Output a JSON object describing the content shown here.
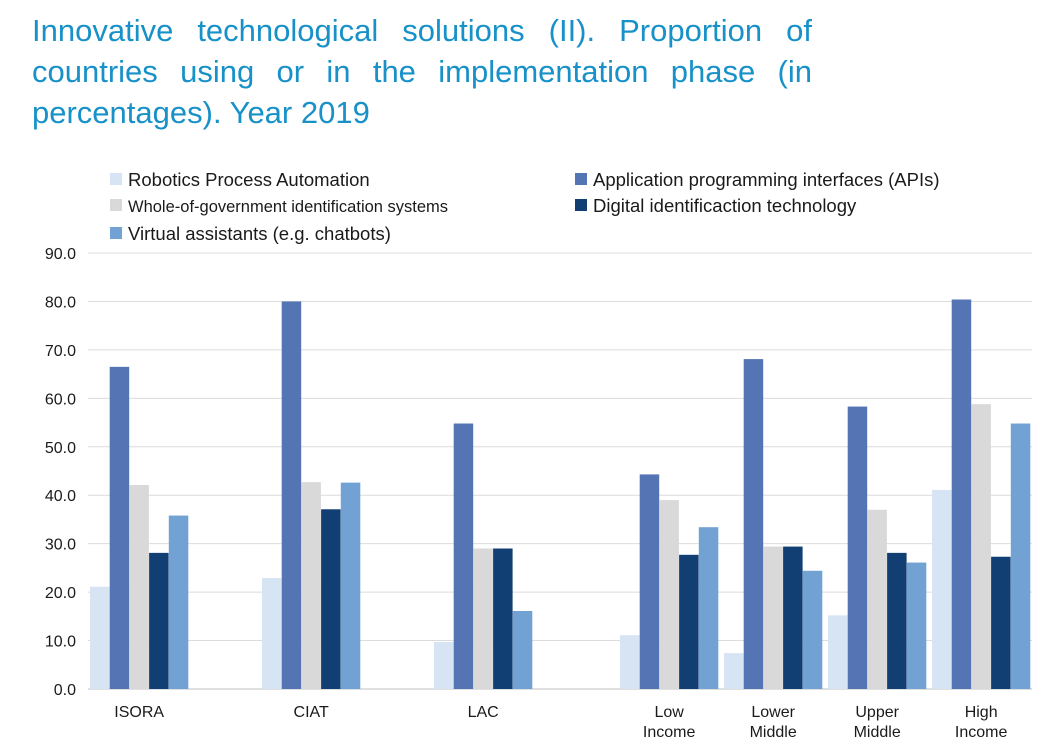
{
  "chart_data": {
    "type": "bar",
    "title": "Innovative technological solutions (II). Proportion of countries using or in the implementation phase (in percentages). Year 2019",
    "xlabel": "",
    "ylabel": "",
    "ylim": [
      0,
      90
    ],
    "yticks": [
      "0.0",
      "10.0",
      "20.0",
      "30.0",
      "40.0",
      "50.0",
      "60.0",
      "70.0",
      "80.0",
      "90.0"
    ],
    "grid": true,
    "legend_position": "top",
    "categories": [
      [
        "ISORA"
      ],
      [
        "CIAT"
      ],
      [
        "LAC"
      ],
      [
        "Low",
        "Income"
      ],
      [
        "Lower",
        "Middle"
      ],
      [
        "Upper",
        "Middle"
      ],
      [
        "High",
        "Income"
      ]
    ],
    "series": [
      {
        "name": "Robotics Process Automation",
        "color": "#d6e4f4",
        "values": [
          21.1,
          22.9,
          9.7,
          11.1,
          7.4,
          15.2,
          41.1
        ]
      },
      {
        "name": "Application programming interfaces (APIs)",
        "color": "#5474b4",
        "values": [
          66.5,
          80.0,
          54.8,
          44.3,
          68.1,
          58.3,
          80.4
        ]
      },
      {
        "name": "Whole-of-government identification systems",
        "color": "#d9d9d9",
        "values": [
          42.1,
          42.7,
          29.0,
          39.0,
          29.4,
          37.0,
          58.8
        ]
      },
      {
        "name": "Digital identificaction technology",
        "color": "#123f73",
        "values": [
          28.1,
          37.1,
          29.0,
          27.7,
          29.4,
          28.1,
          27.3
        ]
      },
      {
        "name": "Virtual assistants (e.g. chatbots)",
        "color": "#72a2d4",
        "values": [
          35.8,
          42.6,
          16.1,
          33.4,
          24.4,
          26.1,
          54.8
        ]
      }
    ]
  }
}
